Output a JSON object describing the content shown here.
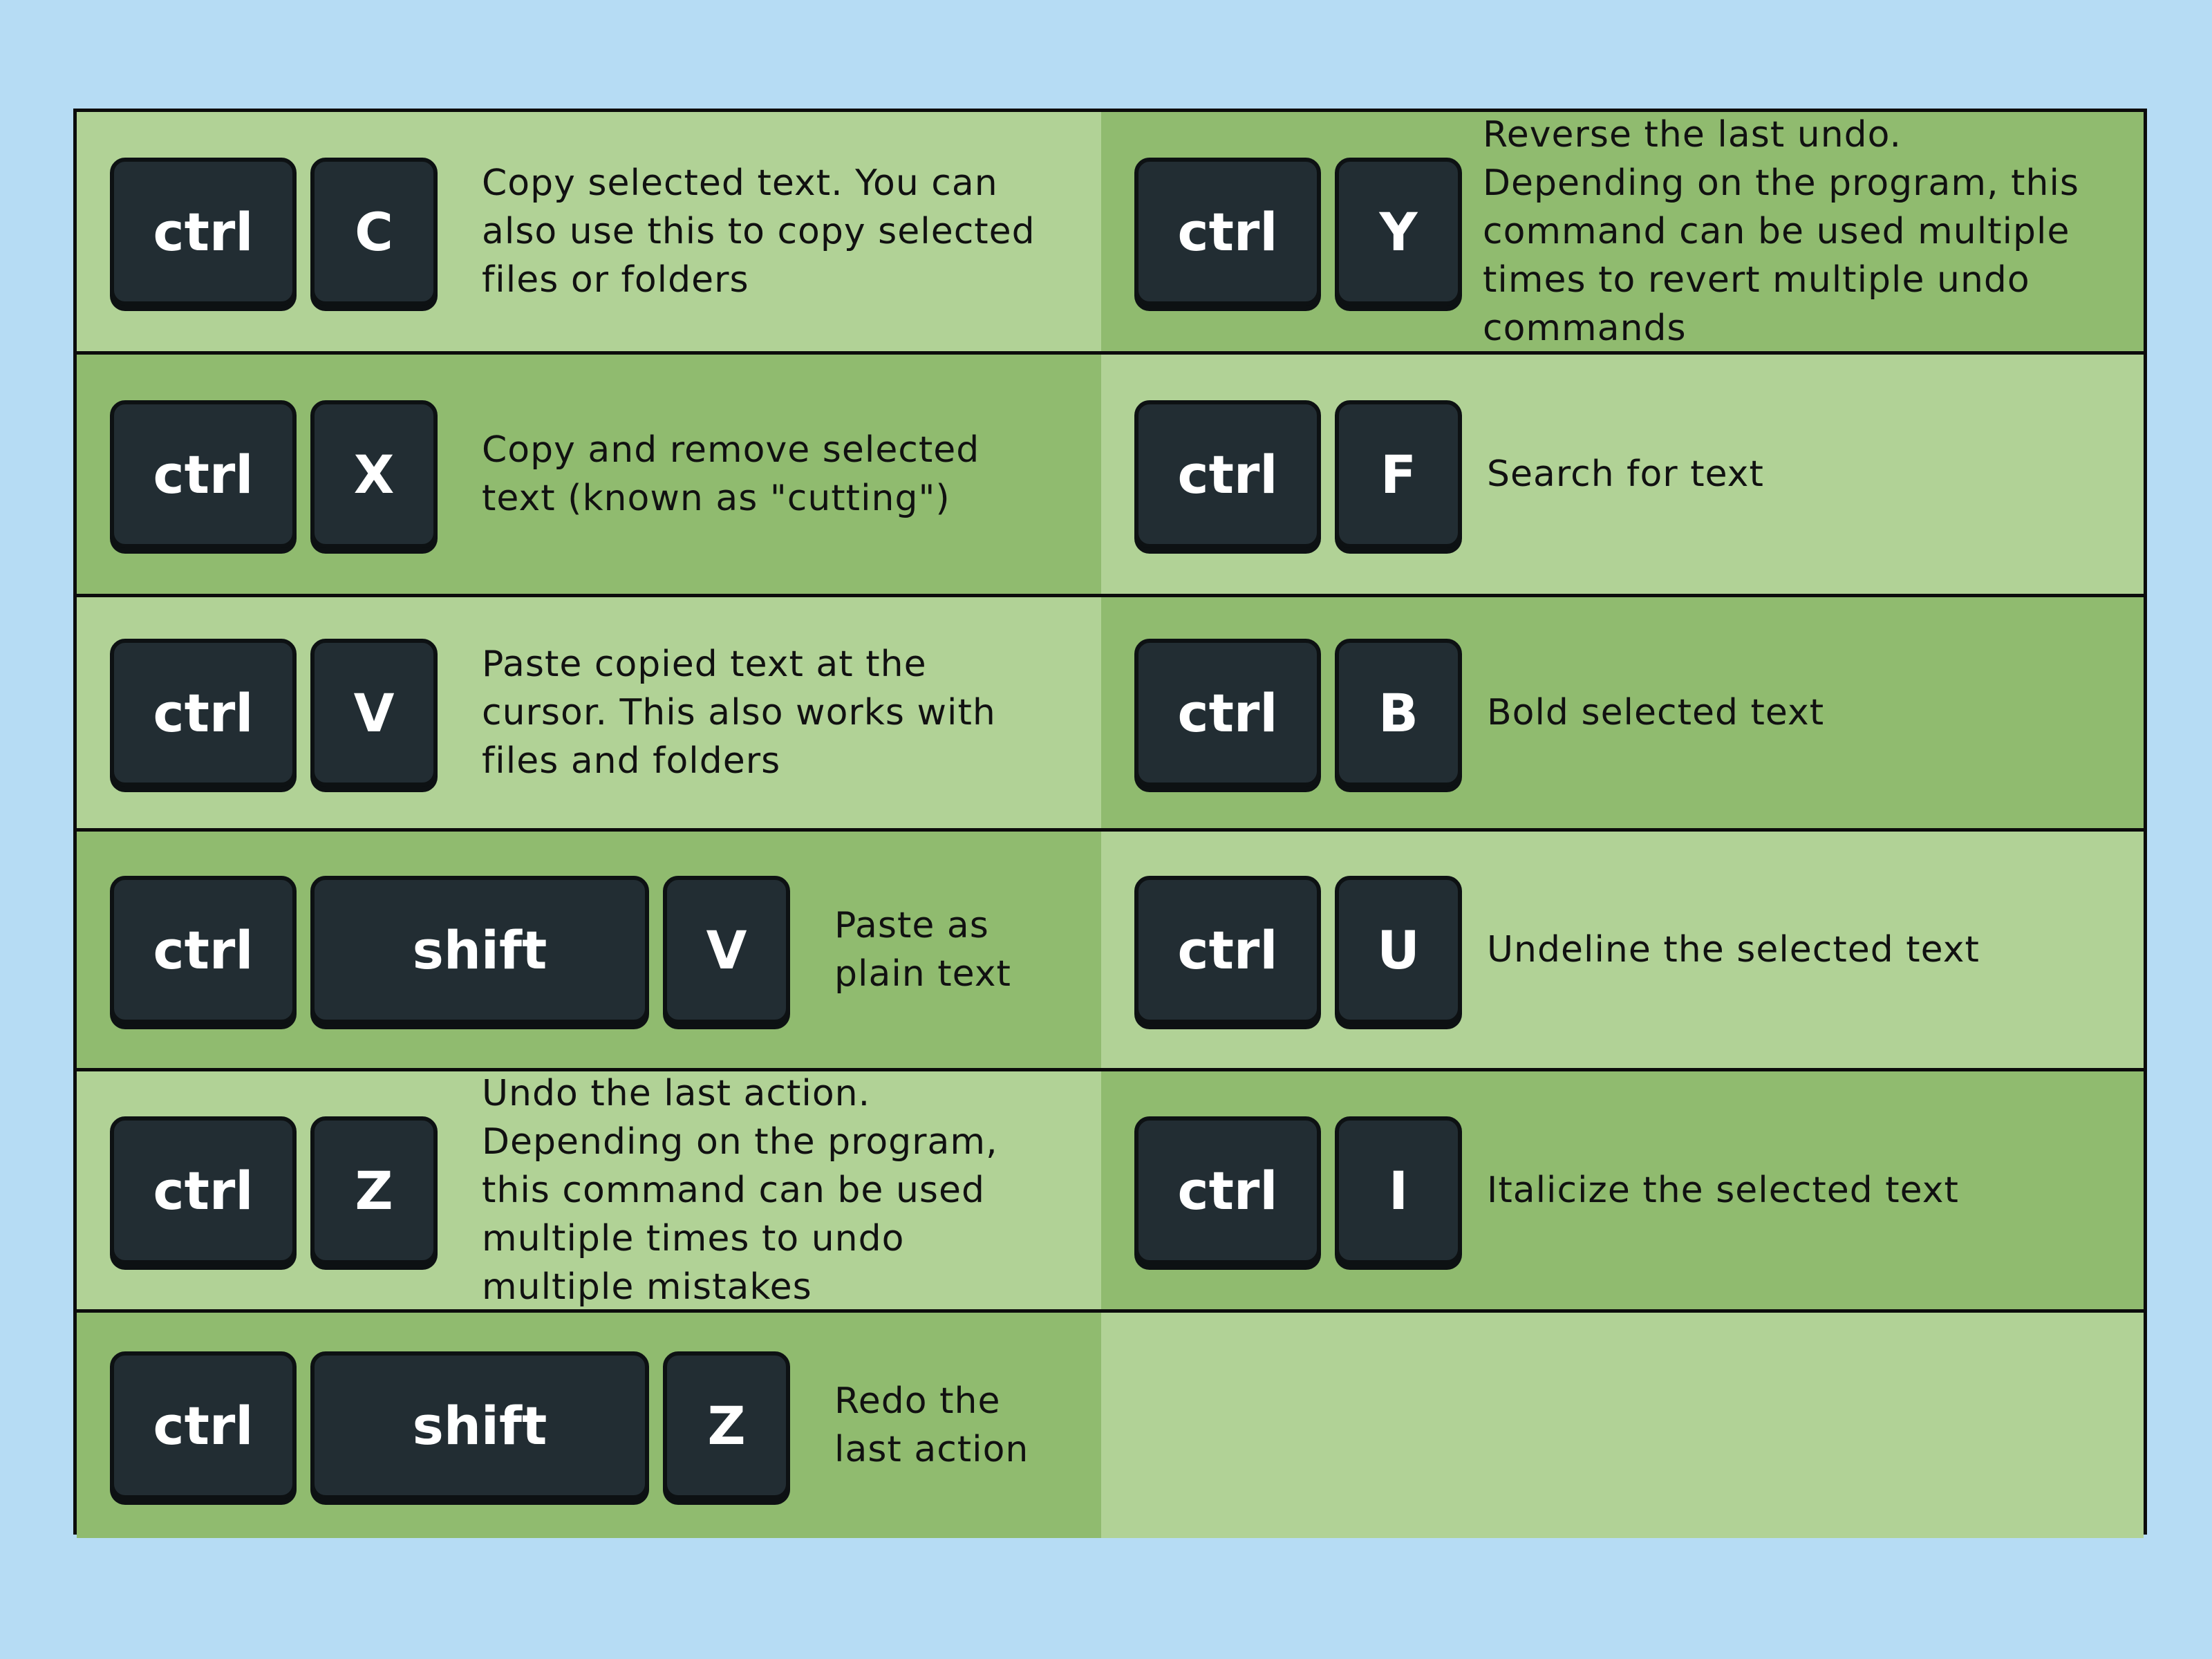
{
  "colors": {
    "background": "#b6dcf4",
    "row_light": "#b1d296",
    "row_dark": "#90bb6f",
    "key": "#222d33",
    "key_label": "#ffffff"
  },
  "left": [
    {
      "keys": [
        "ctrl",
        "C"
      ],
      "text": "Copy selected text. You can also use this to copy selected files or folders"
    },
    {
      "keys": [
        "ctrl",
        "X"
      ],
      "text": "Copy and remove selected text (known as \"cutting\")"
    },
    {
      "keys": [
        "ctrl",
        "V"
      ],
      "text": "Paste copied text at the cursor. This also works with files and folders"
    },
    {
      "keys": [
        "ctrl",
        "shift",
        "V"
      ],
      "text": "Paste as plain text"
    },
    {
      "keys": [
        "ctrl",
        "Z"
      ],
      "text": "Undo the last action. Depending on the program, this command can be used multiple times to undo multiple mistakes"
    },
    {
      "keys": [
        "ctrl",
        "shift",
        "Z"
      ],
      "text": "Redo the last action"
    }
  ],
  "right": [
    {
      "keys": [
        "ctrl",
        "Y"
      ],
      "text": "Reverse the last undo. Depending on the program, this command can be used multiple times to revert multiple undo commands"
    },
    {
      "keys": [
        "ctrl",
        "F"
      ],
      "text": "Search for text"
    },
    {
      "keys": [
        "ctrl",
        "B"
      ],
      "text": "Bold selected text"
    },
    {
      "keys": [
        "ctrl",
        "U"
      ],
      "text": "Undeline the selected text"
    },
    {
      "keys": [
        "ctrl",
        "I"
      ],
      "text": "Italicize the selected text"
    }
  ]
}
